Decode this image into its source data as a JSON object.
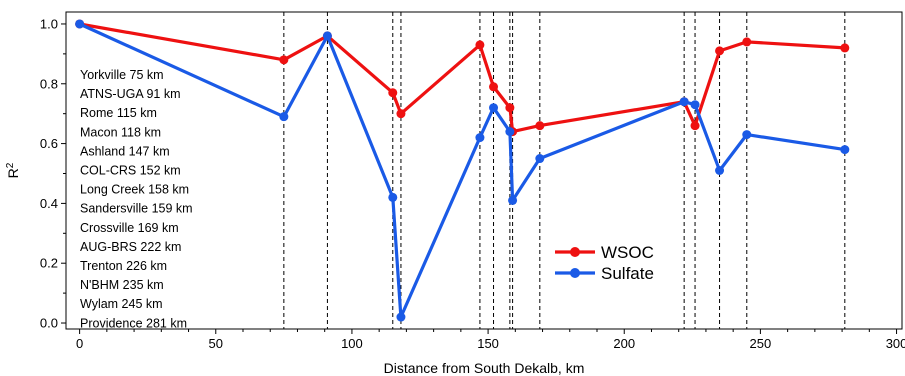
{
  "chart_data": {
    "type": "line",
    "xlabel": "Distance from South Dekalb, km",
    "ylabel": "R",
    "ylabel_superscript": "2",
    "xlim": [
      -5,
      302
    ],
    "ylim": [
      -0.02,
      1.04
    ],
    "x_ticks": [
      0,
      50,
      100,
      150,
      200,
      250,
      300
    ],
    "x_tick_labels": [
      "0",
      "50",
      "100",
      "150",
      "200",
      "250",
      "300"
    ],
    "y_ticks": [
      0.0,
      0.2,
      0.4,
      0.6,
      0.8,
      1.0
    ],
    "y_tick_labels": [
      "0.0",
      "0.2",
      "0.4",
      "0.6",
      "0.8",
      "1.0"
    ],
    "grid": false,
    "legend_position": "center-right",
    "series": [
      {
        "name": "WSOC",
        "color": "#ee1111",
        "x": [
          0,
          75,
          91,
          115,
          118,
          147,
          152,
          158,
          159,
          169,
          222,
          226,
          235,
          245,
          281
        ],
        "y": [
          1.0,
          0.88,
          0.96,
          0.77,
          0.7,
          0.93,
          0.79,
          0.72,
          0.64,
          0.66,
          0.74,
          0.66,
          0.91,
          0.94,
          0.92
        ]
      },
      {
        "name": "Sulfate",
        "color": "#1a5ae6",
        "x": [
          0,
          75,
          91,
          115,
          118,
          147,
          152,
          158,
          159,
          169,
          222,
          226,
          235,
          245,
          281
        ],
        "y": [
          1.0,
          0.69,
          0.96,
          0.42,
          0.02,
          0.62,
          0.72,
          0.64,
          0.41,
          0.55,
          0.74,
          0.73,
          0.51,
          0.63,
          0.58
        ]
      }
    ],
    "site_lines_x": [
      75,
      91,
      115,
      118,
      147,
      152,
      158,
      159,
      169,
      222,
      226,
      235,
      245,
      281
    ],
    "site_labels": [
      "Yorkville 75 km",
      "ATNS-UGA 91 km",
      "Rome 115 km",
      "Macon 118 km",
      "Ashland 147 km",
      "COL-CRS 152 km",
      "Long Creek 158 km",
      "Sandersville 159 km",
      "Crossville 169 km",
      "AUG-BRS 222 km",
      "Trenton 226 km",
      "N'BHM 235 km",
      "Wylam 245 km",
      "Providence 281 km"
    ]
  }
}
